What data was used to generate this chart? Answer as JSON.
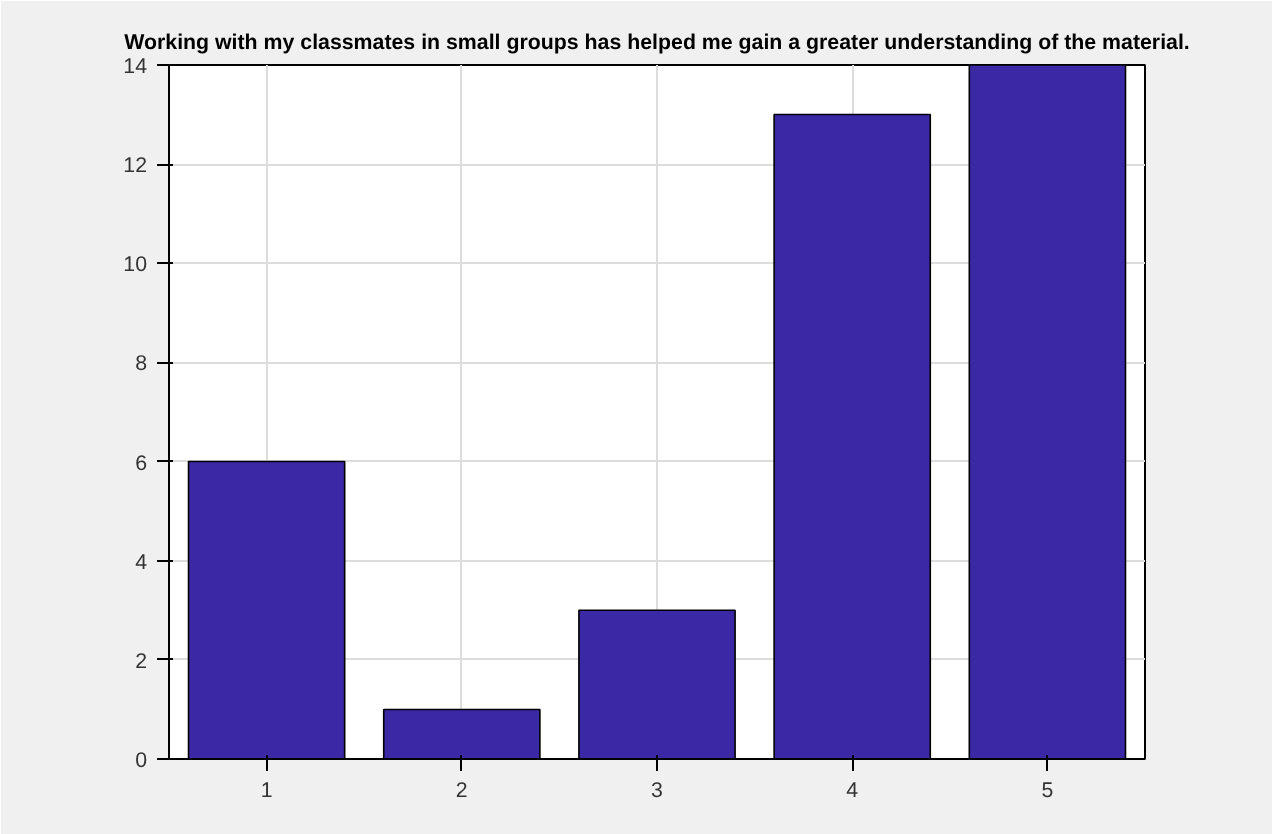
{
  "chart_data": {
    "type": "bar",
    "title": "Working with my classmates in small groups has helped me gain a greater understanding of the material.",
    "categories": [
      "1",
      "2",
      "3",
      "4",
      "5"
    ],
    "values": [
      6,
      1,
      3,
      13,
      14
    ],
    "color": "#3b28a5",
    "ylim": [
      0,
      14
    ],
    "yticks": [
      0,
      2,
      4,
      6,
      8,
      10,
      12,
      14
    ],
    "grid": true
  }
}
